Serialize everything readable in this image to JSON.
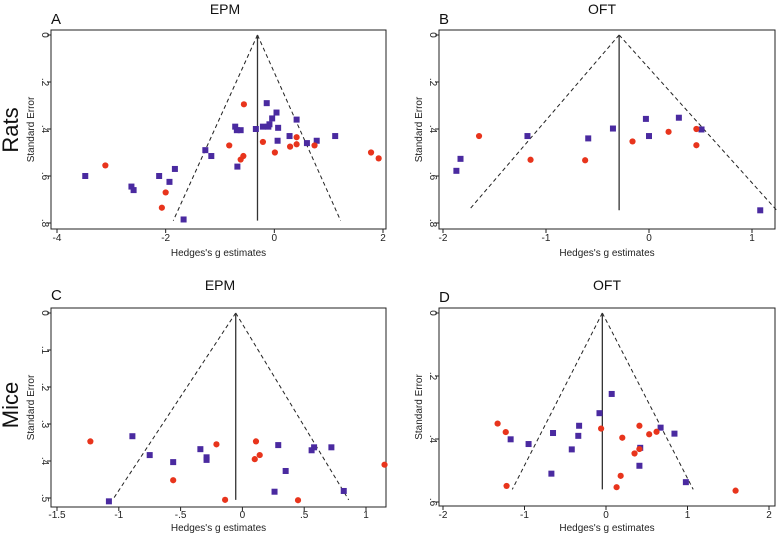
{
  "row_labels": [
    "Rats",
    "Mice"
  ],
  "colors": {
    "square": "#4a2aa0",
    "circle": "#e8341c",
    "axis": "#222222"
  },
  "chart_data": [
    {
      "type": "scatter",
      "panel": "A",
      "title": "EPM",
      "row_label": "Rats",
      "xlabel": "Hedges's g estimates",
      "ylabel": "Standard Error",
      "xlim": [
        -4,
        2
      ],
      "ylim": [
        0,
        0.8
      ],
      "y_reversed": true,
      "xticks": [
        {
          "v": -4,
          "label": "-4"
        },
        {
          "v": -2,
          "label": "-2"
        },
        {
          "v": 0,
          "label": "0"
        },
        {
          "v": 2,
          "label": "2"
        }
      ],
      "yticks": [
        {
          "v": 0,
          "label": "0"
        },
        {
          "v": 0.2,
          "label": ".2"
        },
        {
          "v": 0.4,
          "label": ".4"
        },
        {
          "v": 0.6,
          "label": ".6"
        },
        {
          "v": 0.8,
          "label": ".8"
        }
      ],
      "funnel": {
        "center": -0.31,
        "se_max": 0.79,
        "lower": -1.86,
        "upper": 1.22
      },
      "series": [
        {
          "name": "squares",
          "marker": "square",
          "points": [
            [
              -0.14,
              0.29
            ],
            [
              0.04,
              0.33
            ],
            [
              -0.04,
              0.355
            ],
            [
              -0.09,
              0.38
            ],
            [
              -0.11,
              0.39
            ],
            [
              0.07,
              0.395
            ],
            [
              -0.21,
              0.39
            ],
            [
              -0.34,
              0.4
            ],
            [
              -0.72,
              0.39
            ],
            [
              -0.69,
              0.405
            ],
            [
              -0.62,
              0.405
            ],
            [
              0.41,
              0.36
            ],
            [
              0.28,
              0.43
            ],
            [
              0.06,
              0.45
            ],
            [
              0.6,
              0.46
            ],
            [
              0.78,
              0.45
            ],
            [
              1.12,
              0.43
            ],
            [
              -1.27,
              0.49
            ],
            [
              -1.16,
              0.515
            ],
            [
              -0.68,
              0.56
            ],
            [
              -1.83,
              0.57
            ],
            [
              -2.12,
              0.6
            ],
            [
              -1.93,
              0.625
            ],
            [
              -2.63,
              0.645
            ],
            [
              -2.59,
              0.66
            ],
            [
              -3.48,
              0.6
            ],
            [
              -1.67,
              0.785
            ]
          ]
        },
        {
          "name": "circles",
          "marker": "circle",
          "points": [
            [
              -0.56,
              0.295
            ],
            [
              -0.83,
              0.47
            ],
            [
              -0.57,
              0.515
            ],
            [
              -0.62,
              0.53
            ],
            [
              -0.21,
              0.455
            ],
            [
              0.01,
              0.5
            ],
            [
              0.29,
              0.475
            ],
            [
              0.41,
              0.465
            ],
            [
              0.41,
              0.435
            ],
            [
              0.74,
              0.47
            ],
            [
              1.78,
              0.5
            ],
            [
              1.92,
              0.525
            ],
            [
              -3.11,
              0.555
            ],
            [
              -2.0,
              0.67
            ],
            [
              -2.07,
              0.735
            ]
          ]
        }
      ]
    },
    {
      "type": "scatter",
      "panel": "B",
      "title": "OFT",
      "row_label": "Rats",
      "xlabel": "Hedges's g estimates",
      "ylabel": "Standard Error",
      "xlim": [
        -2,
        1
      ],
      "ylim": [
        0,
        0.8
      ],
      "y_reversed": true,
      "xticks": [
        {
          "v": -2,
          "label": "-2"
        },
        {
          "v": -1,
          "label": "-1"
        },
        {
          "v": 0,
          "label": "0"
        },
        {
          "v": 1,
          "label": "1"
        }
      ],
      "yticks": [
        {
          "v": 0,
          "label": "0"
        },
        {
          "v": 0.2,
          "label": ".2"
        },
        {
          "v": 0.4,
          "label": ".4"
        },
        {
          "v": 0.6,
          "label": ".6"
        },
        {
          "v": 0.8,
          "label": ".8"
        }
      ],
      "funnel": {
        "center": -0.29,
        "se_max": 0.746,
        "lower": -1.75,
        "upper": 1.24
      },
      "series": [
        {
          "name": "squares",
          "marker": "square",
          "points": [
            [
              -1.87,
              0.578
            ],
            [
              -1.83,
              0.527
            ],
            [
              -1.18,
              0.43
            ],
            [
              -0.59,
              0.44
            ],
            [
              -0.35,
              0.398
            ],
            [
              -0.03,
              0.357
            ],
            [
              0.0,
              0.43
            ],
            [
              0.29,
              0.352
            ],
            [
              0.51,
              0.402
            ],
            [
              1.08,
              0.746
            ]
          ]
        },
        {
          "name": "circles",
          "marker": "circle",
          "points": [
            [
              -1.65,
              0.43
            ],
            [
              -1.15,
              0.531
            ],
            [
              -0.62,
              0.533
            ],
            [
              -0.16,
              0.453
            ],
            [
              0.19,
              0.412
            ],
            [
              0.46,
              0.4
            ],
            [
              0.46,
              0.469
            ]
          ]
        }
      ]
    },
    {
      "type": "scatter",
      "panel": "C",
      "title": "EPM",
      "row_label": "Mice",
      "xlabel": "Hedges's g estimates",
      "ylabel": "Standard Error",
      "xlim": [
        -1.5,
        1
      ],
      "ylim": [
        0,
        0.5
      ],
      "y_reversed": true,
      "xticks": [
        {
          "v": -1.5,
          "label": "-1.5"
        },
        {
          "v": -1,
          "label": "-1"
        },
        {
          "v": -0.5,
          "label": "-.5"
        },
        {
          "v": 0,
          "label": "0"
        },
        {
          "v": 0.5,
          "label": ".5"
        },
        {
          "v": 1,
          "label": "1"
        }
      ],
      "yticks": [
        {
          "v": 0,
          "label": "0"
        },
        {
          "v": 0.1,
          "label": ".1"
        },
        {
          "v": 0.2,
          "label": ".2"
        },
        {
          "v": 0.3,
          "label": ".3"
        },
        {
          "v": 0.4,
          "label": ".4"
        },
        {
          "v": 0.5,
          "label": ".5"
        }
      ],
      "funnel": {
        "center": -0.054,
        "se_max": 0.505,
        "lower": -1.05,
        "upper": 0.86
      },
      "series": [
        {
          "name": "squares",
          "marker": "square",
          "points": [
            [
              -0.89,
              0.333
            ],
            [
              -0.75,
              0.384
            ],
            [
              -0.56,
              0.403
            ],
            [
              -0.34,
              0.368
            ],
            [
              -0.29,
              0.39
            ],
            [
              -0.29,
              0.397
            ],
            [
              -1.08,
              0.509
            ],
            [
              0.29,
              0.357
            ],
            [
              0.35,
              0.427
            ],
            [
              0.26,
              0.483
            ],
            [
              0.56,
              0.371
            ],
            [
              0.58,
              0.363
            ],
            [
              0.72,
              0.363
            ],
            [
              0.82,
              0.481
            ]
          ]
        },
        {
          "name": "circles",
          "marker": "circle",
          "points": [
            [
              -1.23,
              0.347
            ],
            [
              -0.21,
              0.355
            ],
            [
              -0.56,
              0.452
            ],
            [
              -0.14,
              0.505
            ],
            [
              0.11,
              0.347
            ],
            [
              0.1,
              0.395
            ],
            [
              0.14,
              0.384
            ],
            [
              0.45,
              0.506
            ],
            [
              1.15,
              0.41
            ]
          ]
        }
      ]
    },
    {
      "type": "scatter",
      "panel": "D",
      "title": "OFT",
      "row_label": "Mice",
      "xlabel": "Hedges's g estimates",
      "ylabel": "Standard Error",
      "xlim": [
        -2,
        2
      ],
      "ylim": [
        0,
        0.6
      ],
      "y_reversed": true,
      "xticks": [
        {
          "v": -2,
          "label": "-2"
        },
        {
          "v": -1,
          "label": "-1"
        },
        {
          "v": 0,
          "label": "0"
        },
        {
          "v": 1,
          "label": "1"
        },
        {
          "v": 2,
          "label": "2"
        }
      ],
      "yticks": [
        {
          "v": 0,
          "label": "0"
        },
        {
          "v": 0.2,
          "label": ".2"
        },
        {
          "v": 0.4,
          "label": ".4"
        },
        {
          "v": 0.6,
          "label": ".6"
        }
      ],
      "funnel": {
        "center": -0.045,
        "se_max": 0.56,
        "lower": -1.15,
        "upper": 1.07
      },
      "series": [
        {
          "name": "squares",
          "marker": "square",
          "points": [
            [
              0.07,
              0.257
            ],
            [
              -0.08,
              0.318
            ],
            [
              -0.33,
              0.358
            ],
            [
              -0.34,
              0.39
            ],
            [
              -0.65,
              0.381
            ],
            [
              -0.42,
              0.433
            ],
            [
              -0.95,
              0.416
            ],
            [
              -1.17,
              0.401
            ],
            [
              -0.67,
              0.51
            ],
            [
              0.42,
              0.428
            ],
            [
              0.41,
              0.485
            ],
            [
              0.67,
              0.364
            ],
            [
              0.84,
              0.383
            ],
            [
              0.98,
              0.537
            ]
          ]
        },
        {
          "name": "circles",
          "marker": "circle",
          "points": [
            [
              -1.33,
              0.351
            ],
            [
              -1.23,
              0.378
            ],
            [
              -1.22,
              0.549
            ],
            [
              -0.06,
              0.367
            ],
            [
              0.2,
              0.396
            ],
            [
              0.41,
              0.358
            ],
            [
              0.53,
              0.385
            ],
            [
              0.62,
              0.377
            ],
            [
              0.41,
              0.432
            ],
            [
              0.35,
              0.446
            ],
            [
              0.18,
              0.517
            ],
            [
              0.13,
              0.553
            ],
            [
              1.59,
              0.564
            ]
          ]
        }
      ]
    }
  ]
}
